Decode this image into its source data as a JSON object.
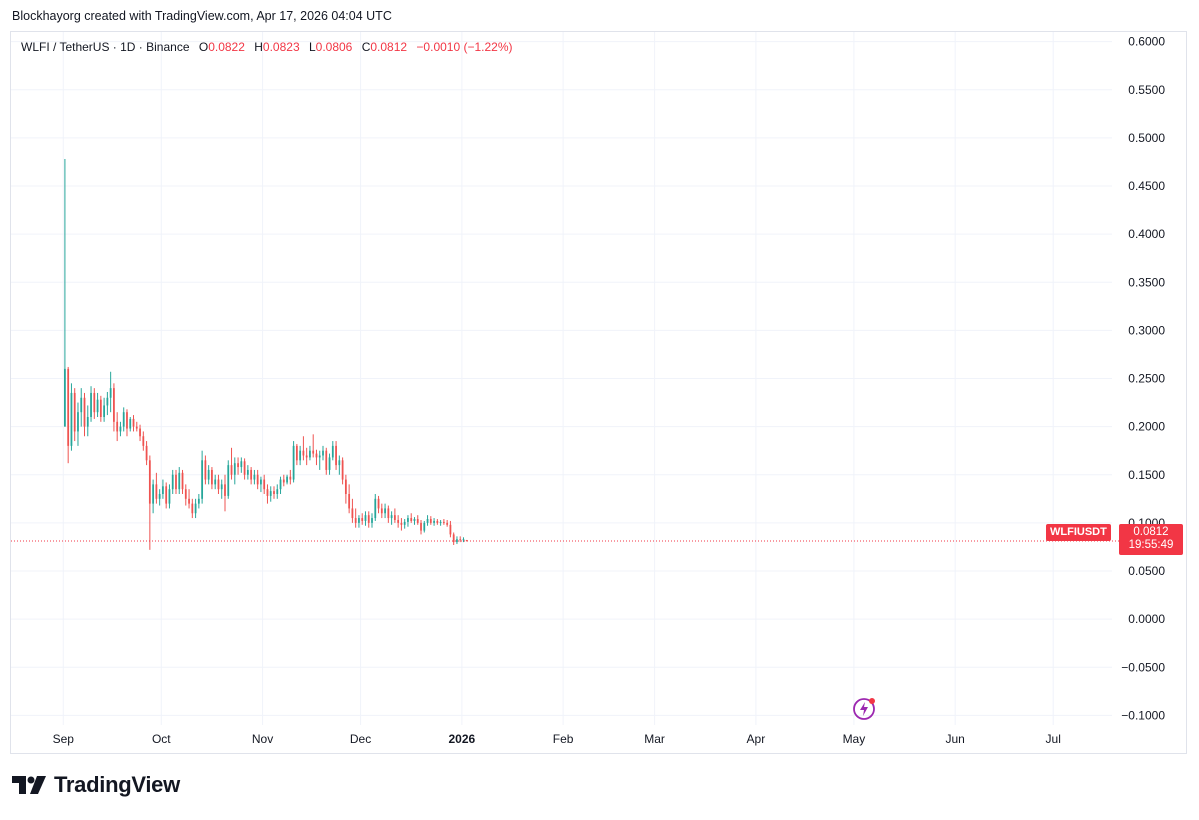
{
  "credit": "Blockhayorg created with TradingView.com, Apr 17, 2026 04:04 UTC",
  "legend": {
    "symbol": "WLFI / TetherUS · 1D · Binance",
    "o_label": "O",
    "o_value": "0.0822",
    "h_label": "H",
    "h_value": "0.0823",
    "l_label": "L",
    "l_value": "0.0806",
    "c_label": "C",
    "c_value": "0.0812",
    "change": "−0.0010 (−1.22%)"
  },
  "price_tag": {
    "symbol": "WLFIUSDT",
    "price": "0.0812",
    "countdown": "19:55:49"
  },
  "logo": {
    "name": "TradingView"
  },
  "colors": {
    "up": "#26a69a",
    "down": "#ef5350",
    "grid": "#f0f3fa",
    "last_price": "#f23645"
  },
  "icons": [
    "tradingview-logo-icon",
    "bolt-icon"
  ],
  "chart_data": {
    "type": "candlestick",
    "title": "WLFI / TetherUS · 1D · Binance",
    "xlabel": "",
    "ylabel": "",
    "y_ticks": [
      "0.6000",
      "0.5500",
      "0.5000",
      "0.4500",
      "0.4000",
      "0.3500",
      "0.3000",
      "0.2500",
      "0.2000",
      "0.1500",
      "0.1000",
      "0.0500",
      "0.0000",
      "−0.0500",
      "−0.1000"
    ],
    "y_tick_values": [
      0.6,
      0.55,
      0.5,
      0.45,
      0.4,
      0.35,
      0.3,
      0.25,
      0.2,
      0.15,
      0.1,
      0.05,
      0,
      -0.05,
      -0.1
    ],
    "ylim": [
      -0.11,
      0.61
    ],
    "xlim": [
      "2025-08-16",
      "2026-07-19"
    ],
    "x_ticks": [
      {
        "label": "Sep",
        "date": "2025-09-01",
        "bold": false
      },
      {
        "label": "Oct",
        "date": "2025-10-01",
        "bold": false
      },
      {
        "label": "Nov",
        "date": "2025-11-01",
        "bold": false
      },
      {
        "label": "Dec",
        "date": "2025-12-01",
        "bold": false
      },
      {
        "label": "2026",
        "date": "2026-01-01",
        "bold": true
      },
      {
        "label": "Feb",
        "date": "2026-02-01",
        "bold": false
      },
      {
        "label": "Mar",
        "date": "2026-03-01",
        "bold": false
      },
      {
        "label": "Apr",
        "date": "2026-04-01",
        "bold": false
      },
      {
        "label": "May",
        "date": "2026-05-01",
        "bold": false
      },
      {
        "label": "Jun",
        "date": "2026-06-01",
        "bold": false
      },
      {
        "label": "Jul",
        "date": "2026-07-01",
        "bold": false
      }
    ],
    "start_date": "2025-09-01",
    "last_price": 0.0812,
    "grid": true,
    "candles": [
      [
        0.2,
        0.478,
        0.2,
        0.26
      ],
      [
        0.26,
        0.262,
        0.162,
        0.18
      ],
      [
        0.18,
        0.245,
        0.175,
        0.235
      ],
      [
        0.235,
        0.24,
        0.185,
        0.195
      ],
      [
        0.195,
        0.225,
        0.18,
        0.215
      ],
      [
        0.215,
        0.24,
        0.2,
        0.23
      ],
      [
        0.23,
        0.235,
        0.19,
        0.2
      ],
      [
        0.2,
        0.222,
        0.19,
        0.21
      ],
      [
        0.21,
        0.242,
        0.205,
        0.235
      ],
      [
        0.235,
        0.24,
        0.208,
        0.215
      ],
      [
        0.215,
        0.235,
        0.21,
        0.228
      ],
      [
        0.228,
        0.232,
        0.205,
        0.21
      ],
      [
        0.21,
        0.23,
        0.205,
        0.222
      ],
      [
        0.222,
        0.236,
        0.212,
        0.23
      ],
      [
        0.23,
        0.257,
        0.215,
        0.24
      ],
      [
        0.24,
        0.245,
        0.195,
        0.205
      ],
      [
        0.205,
        0.215,
        0.185,
        0.195
      ],
      [
        0.195,
        0.205,
        0.19,
        0.2
      ],
      [
        0.2,
        0.22,
        0.195,
        0.215
      ],
      [
        0.215,
        0.218,
        0.19,
        0.198
      ],
      [
        0.198,
        0.21,
        0.195,
        0.208
      ],
      [
        0.208,
        0.212,
        0.195,
        0.2
      ],
      [
        0.2,
        0.205,
        0.195,
        0.198
      ],
      [
        0.198,
        0.202,
        0.185,
        0.19
      ],
      [
        0.19,
        0.195,
        0.175,
        0.18
      ],
      [
        0.18,
        0.185,
        0.16,
        0.165
      ],
      [
        0.165,
        0.17,
        0.072,
        0.12
      ],
      [
        0.12,
        0.145,
        0.11,
        0.14
      ],
      [
        0.14,
        0.152,
        0.12,
        0.125
      ],
      [
        0.125,
        0.135,
        0.118,
        0.13
      ],
      [
        0.13,
        0.145,
        0.125,
        0.138
      ],
      [
        0.138,
        0.142,
        0.115,
        0.12
      ],
      [
        0.12,
        0.14,
        0.115,
        0.135
      ],
      [
        0.135,
        0.155,
        0.13,
        0.15
      ],
      [
        0.15,
        0.155,
        0.13,
        0.135
      ],
      [
        0.135,
        0.158,
        0.13,
        0.152
      ],
      [
        0.152,
        0.155,
        0.13,
        0.135
      ],
      [
        0.135,
        0.14,
        0.118,
        0.125
      ],
      [
        0.125,
        0.135,
        0.115,
        0.12
      ],
      [
        0.12,
        0.125,
        0.105,
        0.11
      ],
      [
        0.11,
        0.125,
        0.105,
        0.12
      ],
      [
        0.12,
        0.13,
        0.115,
        0.125
      ],
      [
        0.125,
        0.175,
        0.12,
        0.165
      ],
      [
        0.165,
        0.17,
        0.14,
        0.145
      ],
      [
        0.145,
        0.16,
        0.14,
        0.155
      ],
      [
        0.155,
        0.158,
        0.135,
        0.14
      ],
      [
        0.14,
        0.15,
        0.135,
        0.145
      ],
      [
        0.145,
        0.15,
        0.13,
        0.135
      ],
      [
        0.135,
        0.145,
        0.125,
        0.14
      ],
      [
        0.14,
        0.15,
        0.112,
        0.128
      ],
      [
        0.128,
        0.165,
        0.125,
        0.16
      ],
      [
        0.16,
        0.178,
        0.145,
        0.15
      ],
      [
        0.15,
        0.168,
        0.14,
        0.162
      ],
      [
        0.162,
        0.168,
        0.15,
        0.158
      ],
      [
        0.158,
        0.168,
        0.152,
        0.164
      ],
      [
        0.164,
        0.167,
        0.145,
        0.15
      ],
      [
        0.15,
        0.16,
        0.145,
        0.155
      ],
      [
        0.155,
        0.158,
        0.14,
        0.145
      ],
      [
        0.145,
        0.155,
        0.14,
        0.15
      ],
      [
        0.15,
        0.155,
        0.135,
        0.14
      ],
      [
        0.14,
        0.148,
        0.132,
        0.145
      ],
      [
        0.145,
        0.15,
        0.13,
        0.135
      ],
      [
        0.135,
        0.14,
        0.12,
        0.128
      ],
      [
        0.128,
        0.138,
        0.122,
        0.133
      ],
      [
        0.133,
        0.138,
        0.125,
        0.13
      ],
      [
        0.13,
        0.14,
        0.125,
        0.135
      ],
      [
        0.135,
        0.148,
        0.13,
        0.145
      ],
      [
        0.145,
        0.15,
        0.138,
        0.142
      ],
      [
        0.142,
        0.15,
        0.14,
        0.148
      ],
      [
        0.148,
        0.155,
        0.14,
        0.145
      ],
      [
        0.145,
        0.185,
        0.142,
        0.18
      ],
      [
        0.18,
        0.182,
        0.16,
        0.165
      ],
      [
        0.165,
        0.18,
        0.16,
        0.175
      ],
      [
        0.175,
        0.19,
        0.165,
        0.17
      ],
      [
        0.17,
        0.178,
        0.16,
        0.168
      ],
      [
        0.168,
        0.18,
        0.165,
        0.175
      ],
      [
        0.175,
        0.192,
        0.168,
        0.172
      ],
      [
        0.172,
        0.176,
        0.16,
        0.168
      ],
      [
        0.168,
        0.175,
        0.155,
        0.17
      ],
      [
        0.17,
        0.18,
        0.165,
        0.175
      ],
      [
        0.175,
        0.178,
        0.15,
        0.155
      ],
      [
        0.155,
        0.172,
        0.15,
        0.168
      ],
      [
        0.168,
        0.185,
        0.165,
        0.18
      ],
      [
        0.18,
        0.185,
        0.155,
        0.16
      ],
      [
        0.16,
        0.17,
        0.15,
        0.165
      ],
      [
        0.165,
        0.168,
        0.14,
        0.145
      ],
      [
        0.145,
        0.15,
        0.12,
        0.13
      ],
      [
        0.13,
        0.14,
        0.11,
        0.115
      ],
      [
        0.115,
        0.125,
        0.1,
        0.105
      ],
      [
        0.105,
        0.115,
        0.095,
        0.1
      ],
      [
        0.1,
        0.108,
        0.095,
        0.105
      ],
      [
        0.105,
        0.11,
        0.098,
        0.102
      ],
      [
        0.102,
        0.112,
        0.097,
        0.108
      ],
      [
        0.108,
        0.112,
        0.095,
        0.1
      ],
      [
        0.1,
        0.11,
        0.095,
        0.105
      ],
      [
        0.105,
        0.13,
        0.102,
        0.125
      ],
      [
        0.125,
        0.128,
        0.11,
        0.115
      ],
      [
        0.115,
        0.12,
        0.105,
        0.11
      ],
      [
        0.11,
        0.12,
        0.105,
        0.115
      ],
      [
        0.115,
        0.118,
        0.1,
        0.105
      ],
      [
        0.105,
        0.112,
        0.098,
        0.108
      ],
      [
        0.108,
        0.115,
        0.1,
        0.103
      ],
      [
        0.103,
        0.108,
        0.095,
        0.1
      ],
      [
        0.1,
        0.105,
        0.092,
        0.098
      ],
      [
        0.098,
        0.104,
        0.094,
        0.101
      ],
      [
        0.101,
        0.108,
        0.096,
        0.105
      ],
      [
        0.105,
        0.11,
        0.1,
        0.102
      ],
      [
        0.102,
        0.106,
        0.098,
        0.104
      ],
      [
        0.104,
        0.108,
        0.098,
        0.1
      ],
      [
        0.1,
        0.103,
        0.088,
        0.092
      ],
      [
        0.092,
        0.102,
        0.09,
        0.1
      ],
      [
        0.1,
        0.108,
        0.097,
        0.104
      ],
      [
        0.104,
        0.107,
        0.098,
        0.1
      ],
      [
        0.1,
        0.105,
        0.097,
        0.102
      ],
      [
        0.102,
        0.104,
        0.098,
        0.1
      ],
      [
        0.1,
        0.103,
        0.097,
        0.101
      ],
      [
        0.101,
        0.104,
        0.098,
        0.1
      ],
      [
        0.1,
        0.103,
        0.096,
        0.098
      ],
      [
        0.098,
        0.102,
        0.085,
        0.088
      ],
      [
        0.088,
        0.09,
        0.077,
        0.08
      ],
      [
        0.08,
        0.086,
        0.078,
        0.083
      ],
      [
        0.083,
        0.086,
        0.08,
        0.082
      ],
      [
        0.082,
        0.085,
        0.08,
        0.083
      ],
      [
        0.0822,
        0.0823,
        0.0806,
        0.0812
      ]
    ]
  }
}
